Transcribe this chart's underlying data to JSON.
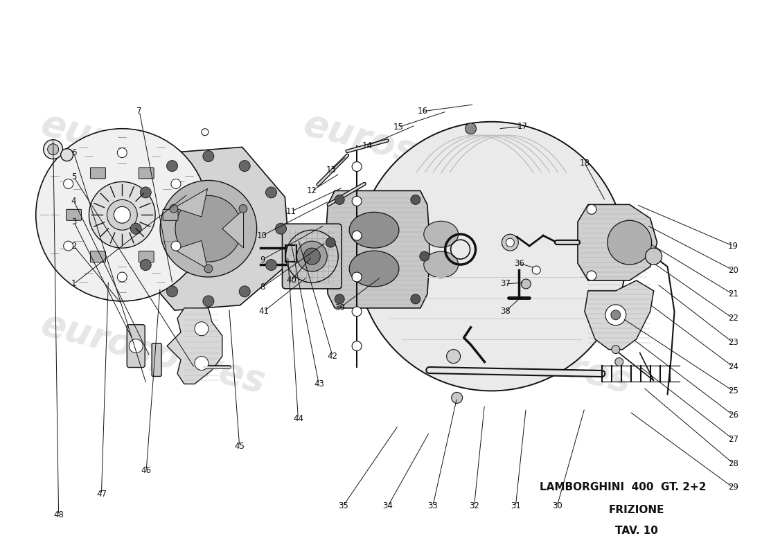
{
  "title_line1": "LAMBORGHINI  400  GT. 2+2",
  "title_line2": "FRIZIONE",
  "title_line3": "TAV. 10",
  "bg_color": "#ffffff",
  "line_color": "#111111",
  "fig_width": 11.0,
  "fig_height": 8.0,
  "watermark_text": "eurospares",
  "watermark_color": "#c8c8c8",
  "label_fontsize": 8.5
}
